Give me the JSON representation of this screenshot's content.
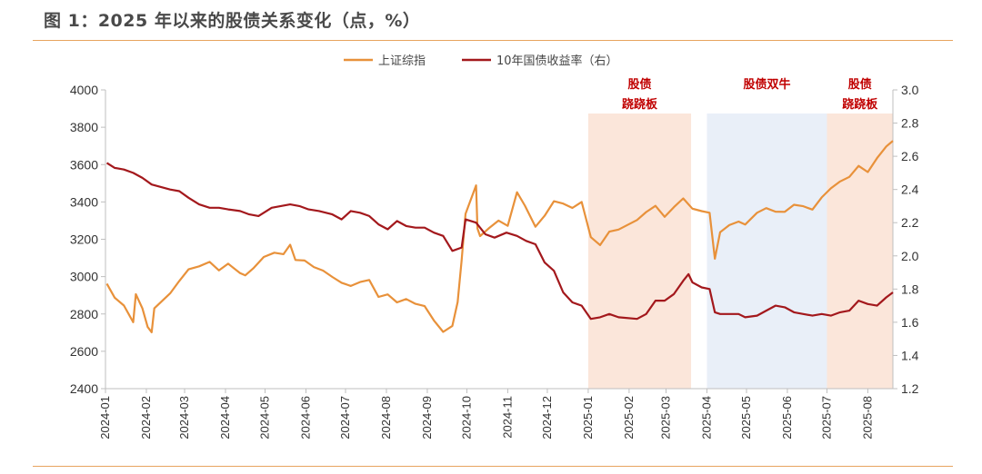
{
  "title": "图 1：2025 年以来的股债关系变化（点，%）",
  "chart_data": {
    "type": "line",
    "legend_position": "top-center",
    "grid": false,
    "colors": {
      "index": "#e8913a",
      "yield": "#a3181c",
      "band_seesaw": "#fbe6da",
      "band_bull": "#e9eff8",
      "region_text": "#c00000"
    },
    "y_left": {
      "min": 2400,
      "max": 4000,
      "ticks": [
        "4000",
        "3800",
        "3600",
        "3400",
        "3200",
        "3000",
        "2800",
        "2600",
        "2400"
      ]
    },
    "y_right": {
      "min": 1.2,
      "max": 3.0,
      "ticks": [
        "3.0",
        "2.8",
        "2.6",
        "2.4",
        "2.2",
        "2.0",
        "1.8",
        "1.6",
        "1.4",
        "1.2"
      ]
    },
    "x_ticks": [
      "2024-01",
      "2024-02",
      "2024-03",
      "2024-04",
      "2024-05",
      "2024-06",
      "2024-07",
      "2024-08",
      "2024-09",
      "2024-10",
      "2024-11",
      "2024-12",
      "2025-01",
      "2025-02",
      "2025-03",
      "2025-04",
      "2025-05",
      "2025-06",
      "2025-07",
      "2025-08"
    ],
    "regions": [
      {
        "lines": [
          "股债",
          "跷跷板"
        ],
        "start": "2025-01",
        "end": "2025-03-20",
        "kind": "seesaw"
      },
      {
        "lines": [
          "股债双牛"
        ],
        "start": "2025-04",
        "end": "2025-07",
        "kind": "bull"
      },
      {
        "lines": [
          "股债",
          "跷跷板"
        ],
        "start": "2025-07",
        "end": "2025-08-20",
        "kind": "seesaw"
      }
    ],
    "series": [
      {
        "name": "上证综指",
        "axis": "left",
        "points": [
          [
            "2024-01-02",
            2962
          ],
          [
            "2024-01-08",
            2887
          ],
          [
            "2024-01-15",
            2845
          ],
          [
            "2024-01-22",
            2756
          ],
          [
            "2024-01-24",
            2906
          ],
          [
            "2024-01-29",
            2830
          ],
          [
            "2024-02-02",
            2730
          ],
          [
            "2024-02-05",
            2702
          ],
          [
            "2024-02-07",
            2830
          ],
          [
            "2024-02-19",
            2910
          ],
          [
            "2024-02-26",
            2977
          ],
          [
            "2024-03-04",
            3039
          ],
          [
            "2024-03-12",
            3055
          ],
          [
            "2024-03-20",
            3079
          ],
          [
            "2024-03-27",
            3033
          ],
          [
            "2024-04-03",
            3069
          ],
          [
            "2024-04-12",
            3019
          ],
          [
            "2024-04-16",
            3007
          ],
          [
            "2024-04-22",
            3044
          ],
          [
            "2024-04-30",
            3105
          ],
          [
            "2024-05-08",
            3128
          ],
          [
            "2024-05-15",
            3120
          ],
          [
            "2024-05-20",
            3171
          ],
          [
            "2024-05-24",
            3089
          ],
          [
            "2024-05-31",
            3086
          ],
          [
            "2024-06-07",
            3051
          ],
          [
            "2024-06-14",
            3032
          ],
          [
            "2024-06-21",
            2998
          ],
          [
            "2024-06-28",
            2967
          ],
          [
            "2024-07-05",
            2950
          ],
          [
            "2024-07-12",
            2971
          ],
          [
            "2024-07-19",
            2982
          ],
          [
            "2024-07-26",
            2891
          ],
          [
            "2024-08-02",
            2905
          ],
          [
            "2024-08-09",
            2862
          ],
          [
            "2024-08-16",
            2880
          ],
          [
            "2024-08-23",
            2854
          ],
          [
            "2024-08-30",
            2842
          ],
          [
            "2024-09-06",
            2765
          ],
          [
            "2024-09-13",
            2704
          ],
          [
            "2024-09-20",
            2736
          ],
          [
            "2024-09-24",
            2863
          ],
          [
            "2024-09-27",
            3087
          ],
          [
            "2024-09-30",
            3336
          ],
          [
            "2024-10-08",
            3489
          ],
          [
            "2024-10-09",
            3258
          ],
          [
            "2024-10-11",
            3217
          ],
          [
            "2024-10-18",
            3261
          ],
          [
            "2024-10-25",
            3300
          ],
          [
            "2024-11-01",
            3272
          ],
          [
            "2024-11-08",
            3452
          ],
          [
            "2024-11-14",
            3380
          ],
          [
            "2024-11-22",
            3267
          ],
          [
            "2024-11-29",
            3326
          ],
          [
            "2024-12-06",
            3404
          ],
          [
            "2024-12-13",
            3391
          ],
          [
            "2024-12-20",
            3368
          ],
          [
            "2024-12-27",
            3400
          ],
          [
            "2025-01-03",
            3211
          ],
          [
            "2025-01-10",
            3169
          ],
          [
            "2025-01-17",
            3241
          ],
          [
            "2025-01-24",
            3252
          ],
          [
            "2025-02-07",
            3303
          ],
          [
            "2025-02-14",
            3346
          ],
          [
            "2025-02-21",
            3379
          ],
          [
            "2025-02-28",
            3320
          ],
          [
            "2025-03-07",
            3372
          ],
          [
            "2025-03-14",
            3419
          ],
          [
            "2025-03-21",
            3364
          ],
          [
            "2025-03-28",
            3351
          ],
          [
            "2025-04-03",
            3342
          ],
          [
            "2025-04-07",
            3096
          ],
          [
            "2025-04-11",
            3238
          ],
          [
            "2025-04-18",
            3276
          ],
          [
            "2025-04-25",
            3295
          ],
          [
            "2025-04-30",
            3279
          ],
          [
            "2025-05-09",
            3342
          ],
          [
            "2025-05-16",
            3367
          ],
          [
            "2025-05-23",
            3348
          ],
          [
            "2025-05-30",
            3347
          ],
          [
            "2025-06-06",
            3385
          ],
          [
            "2025-06-13",
            3377
          ],
          [
            "2025-06-20",
            3359
          ],
          [
            "2025-06-27",
            3424
          ],
          [
            "2025-07-04",
            3473
          ],
          [
            "2025-07-11",
            3510
          ],
          [
            "2025-07-18",
            3534
          ],
          [
            "2025-07-25",
            3593
          ],
          [
            "2025-08-01",
            3560
          ],
          [
            "2025-08-08",
            3635
          ],
          [
            "2025-08-15",
            3697
          ],
          [
            "2025-08-20",
            3727
          ]
        ]
      },
      {
        "name": "10年国债收益率（右）",
        "axis": "right",
        "points": [
          [
            "2024-01-02",
            2.56
          ],
          [
            "2024-01-08",
            2.53
          ],
          [
            "2024-01-15",
            2.52
          ],
          [
            "2024-01-22",
            2.5
          ],
          [
            "2024-01-29",
            2.47
          ],
          [
            "2024-02-05",
            2.43
          ],
          [
            "2024-02-19",
            2.4
          ],
          [
            "2024-02-26",
            2.39
          ],
          [
            "2024-03-04",
            2.35
          ],
          [
            "2024-03-12",
            2.31
          ],
          [
            "2024-03-20",
            2.29
          ],
          [
            "2024-03-27",
            2.29
          ],
          [
            "2024-04-03",
            2.28
          ],
          [
            "2024-04-12",
            2.27
          ],
          [
            "2024-04-19",
            2.25
          ],
          [
            "2024-04-26",
            2.24
          ],
          [
            "2024-05-06",
            2.29
          ],
          [
            "2024-05-13",
            2.3
          ],
          [
            "2024-05-20",
            2.31
          ],
          [
            "2024-05-27",
            2.3
          ],
          [
            "2024-06-03",
            2.28
          ],
          [
            "2024-06-11",
            2.27
          ],
          [
            "2024-06-21",
            2.25
          ],
          [
            "2024-06-28",
            2.22
          ],
          [
            "2024-07-05",
            2.27
          ],
          [
            "2024-07-12",
            2.26
          ],
          [
            "2024-07-19",
            2.24
          ],
          [
            "2024-07-26",
            2.19
          ],
          [
            "2024-08-02",
            2.16
          ],
          [
            "2024-08-09",
            2.21
          ],
          [
            "2024-08-16",
            2.18
          ],
          [
            "2024-08-23",
            2.17
          ],
          [
            "2024-08-30",
            2.17
          ],
          [
            "2024-09-06",
            2.14
          ],
          [
            "2024-09-13",
            2.12
          ],
          [
            "2024-09-20",
            2.03
          ],
          [
            "2024-09-27",
            2.05
          ],
          [
            "2024-09-30",
            2.22
          ],
          [
            "2024-10-08",
            2.2
          ],
          [
            "2024-10-15",
            2.13
          ],
          [
            "2024-10-22",
            2.11
          ],
          [
            "2024-10-31",
            2.14
          ],
          [
            "2024-11-08",
            2.12
          ],
          [
            "2024-11-15",
            2.09
          ],
          [
            "2024-11-22",
            2.07
          ],
          [
            "2024-11-29",
            1.96
          ],
          [
            "2024-12-06",
            1.91
          ],
          [
            "2024-12-13",
            1.78
          ],
          [
            "2024-12-20",
            1.72
          ],
          [
            "2024-12-27",
            1.7
          ],
          [
            "2025-01-03",
            1.62
          ],
          [
            "2025-01-10",
            1.63
          ],
          [
            "2025-01-17",
            1.65
          ],
          [
            "2025-01-24",
            1.63
          ],
          [
            "2025-02-07",
            1.62
          ],
          [
            "2025-02-14",
            1.65
          ],
          [
            "2025-02-21",
            1.73
          ],
          [
            "2025-02-28",
            1.73
          ],
          [
            "2025-03-07",
            1.77
          ],
          [
            "2025-03-14",
            1.85
          ],
          [
            "2025-03-18",
            1.89
          ],
          [
            "2025-03-21",
            1.84
          ],
          [
            "2025-03-28",
            1.81
          ],
          [
            "2025-04-03",
            1.8
          ],
          [
            "2025-04-07",
            1.66
          ],
          [
            "2025-04-11",
            1.65
          ],
          [
            "2025-04-18",
            1.65
          ],
          [
            "2025-04-25",
            1.65
          ],
          [
            "2025-04-30",
            1.63
          ],
          [
            "2025-05-09",
            1.64
          ],
          [
            "2025-05-16",
            1.67
          ],
          [
            "2025-05-23",
            1.7
          ],
          [
            "2025-05-30",
            1.69
          ],
          [
            "2025-06-06",
            1.66
          ],
          [
            "2025-06-13",
            1.65
          ],
          [
            "2025-06-20",
            1.64
          ],
          [
            "2025-06-27",
            1.65
          ],
          [
            "2025-07-04",
            1.64
          ],
          [
            "2025-07-11",
            1.66
          ],
          [
            "2025-07-18",
            1.67
          ],
          [
            "2025-07-25",
            1.73
          ],
          [
            "2025-08-01",
            1.71
          ],
          [
            "2025-08-08",
            1.7
          ],
          [
            "2025-08-15",
            1.75
          ],
          [
            "2025-08-20",
            1.78
          ]
        ]
      }
    ]
  }
}
